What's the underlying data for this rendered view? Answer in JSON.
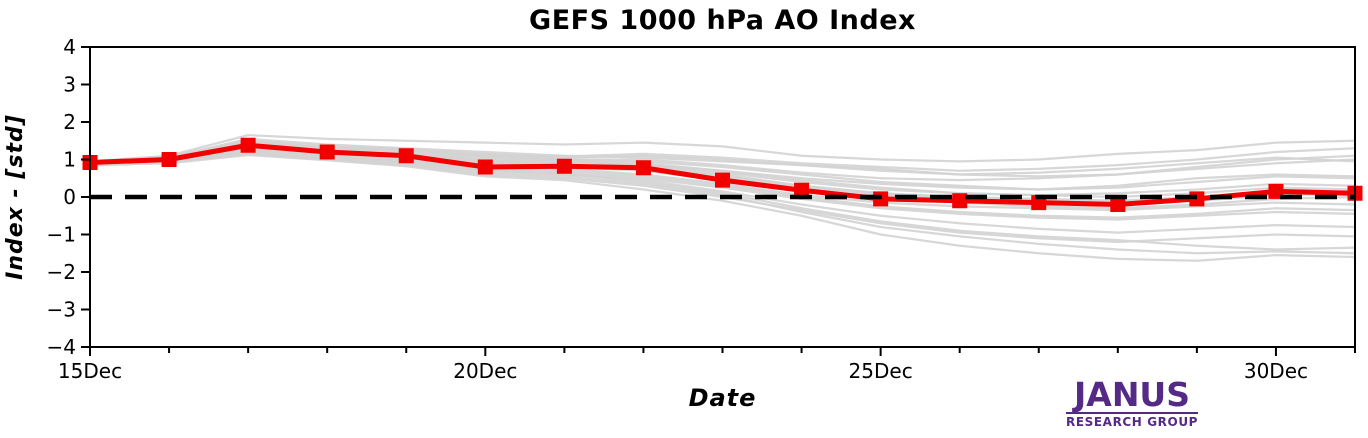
{
  "title": "GEFS 1000 hPa AO Index",
  "colors": {
    "mean_line": "#f20000",
    "ensemble_line": "#d3d3d3",
    "zero_line": "#000000",
    "axis": "#000000",
    "logo_purple": "#542a86"
  },
  "logo": {
    "name": "JANUS",
    "subtitle": "RESEARCH GROUP"
  },
  "chart_data": {
    "type": "line",
    "title": "GEFS 1000 hPa AO Index",
    "xlabel": "Date",
    "ylabel": "Index - [std]",
    "ylim": [
      -4,
      4
    ],
    "ytick_values": [
      4,
      3,
      2,
      1,
      0,
      -1,
      -2,
      -3,
      -4
    ],
    "ytick_labels": [
      "4",
      "3",
      "2",
      "1",
      "0",
      "−1",
      "−2",
      "−3",
      "−4"
    ],
    "x": [
      "15Dec",
      "16Dec",
      "17Dec",
      "18Dec",
      "19Dec",
      "20Dec",
      "21Dec",
      "22Dec",
      "23Dec",
      "24Dec",
      "25Dec",
      "26Dec",
      "27Dec",
      "28Dec",
      "29Dec",
      "30Dec",
      "31Dec"
    ],
    "x_major_tick_indices": [
      0,
      5,
      10,
      15
    ],
    "x_major_tick_labels": [
      "15Dec",
      "20Dec",
      "25Dec",
      "30Dec"
    ],
    "grid": false,
    "legend": "none",
    "zero_line": {
      "value": 0,
      "style": "dashed"
    },
    "series": [
      {
        "name": "ensemble mean",
        "marker": "square",
        "values": [
          0.92,
          1.0,
          1.38,
          1.2,
          1.1,
          0.8,
          0.82,
          0.78,
          0.45,
          0.18,
          -0.05,
          -0.1,
          -0.15,
          -0.2,
          -0.05,
          0.15,
          0.1
        ]
      }
    ],
    "ensemble_members": {
      "name": "GEFS ensemble members",
      "values": [
        [
          0.95,
          1.1,
          1.65,
          1.55,
          1.5,
          1.45,
          1.4,
          1.45,
          1.35,
          1.1,
          1.0,
          0.95,
          1.0,
          1.15,
          1.25,
          1.45,
          1.5
        ],
        [
          0.9,
          1.05,
          1.55,
          1.4,
          1.3,
          1.2,
          1.1,
          1.05,
          0.95,
          0.85,
          0.75,
          0.6,
          0.55,
          0.6,
          0.8,
          1.0,
          1.1
        ],
        [
          0.92,
          1.0,
          1.45,
          1.3,
          1.25,
          1.1,
          1.0,
          0.95,
          0.8,
          0.6,
          0.4,
          0.3,
          0.2,
          0.3,
          0.5,
          0.6,
          0.55
        ],
        [
          0.88,
          0.95,
          1.4,
          1.25,
          1.15,
          1.0,
          0.95,
          0.85,
          0.7,
          0.45,
          0.25,
          0.1,
          0.05,
          0.1,
          0.2,
          0.35,
          0.3
        ],
        [
          0.9,
          1.0,
          1.35,
          1.2,
          1.1,
          0.9,
          0.85,
          0.8,
          0.6,
          0.3,
          0.1,
          0.0,
          -0.05,
          -0.1,
          0.0,
          0.1,
          0.05
        ],
        [
          0.93,
          1.02,
          1.3,
          1.18,
          1.05,
          0.85,
          0.8,
          0.7,
          0.45,
          0.15,
          -0.05,
          -0.1,
          -0.15,
          -0.2,
          -0.1,
          0.05,
          0.1
        ],
        [
          0.87,
          0.98,
          1.28,
          1.15,
          1.0,
          0.8,
          0.75,
          0.6,
          0.35,
          0.05,
          -0.15,
          -0.25,
          -0.3,
          -0.35,
          -0.25,
          -0.15,
          -0.2
        ],
        [
          0.91,
          1.05,
          1.38,
          1.22,
          1.12,
          0.95,
          0.88,
          0.75,
          0.5,
          0.2,
          0.0,
          -0.15,
          -0.25,
          -0.3,
          -0.2,
          -0.05,
          0.0
        ],
        [
          0.89,
          0.96,
          1.25,
          1.1,
          0.95,
          0.75,
          0.65,
          0.5,
          0.25,
          -0.05,
          -0.3,
          -0.45,
          -0.55,
          -0.6,
          -0.5,
          -0.4,
          -0.45
        ],
        [
          0.94,
          1.08,
          1.5,
          1.35,
          1.28,
          1.15,
          1.05,
          1.1,
          1.0,
          0.85,
          0.7,
          0.6,
          0.65,
          0.75,
          0.9,
          1.05,
          0.95
        ],
        [
          0.9,
          1.0,
          1.32,
          1.2,
          1.08,
          0.88,
          0.82,
          0.72,
          0.5,
          0.25,
          0.05,
          -0.05,
          -0.12,
          -0.18,
          -0.08,
          0.08,
          0.15
        ],
        [
          0.86,
          0.94,
          1.2,
          1.05,
          0.92,
          0.7,
          0.6,
          0.45,
          0.15,
          -0.2,
          -0.5,
          -0.7,
          -0.85,
          -0.95,
          -0.85,
          -0.75,
          -0.8
        ],
        [
          0.92,
          1.04,
          1.42,
          1.28,
          1.18,
          1.05,
          0.98,
          0.9,
          0.7,
          0.5,
          0.35,
          0.25,
          0.2,
          0.25,
          0.4,
          0.55,
          0.5
        ],
        [
          0.88,
          0.97,
          1.26,
          1.12,
          0.98,
          0.78,
          0.7,
          0.55,
          0.3,
          0.0,
          -0.25,
          -0.4,
          -0.5,
          -0.55,
          -0.45,
          -0.3,
          -0.35
        ],
        [
          0.9,
          1.01,
          1.36,
          1.24,
          1.14,
          0.98,
          0.92,
          0.85,
          0.65,
          0.4,
          0.2,
          0.1,
          0.05,
          0.0,
          0.1,
          0.25,
          0.2
        ],
        [
          0.85,
          0.92,
          1.15,
          1.0,
          0.85,
          0.6,
          0.5,
          0.3,
          0.0,
          -0.35,
          -0.7,
          -0.95,
          -1.1,
          -1.2,
          -1.1,
          -1.0,
          -1.05
        ],
        [
          0.91,
          1.03,
          1.44,
          1.3,
          1.22,
          1.08,
          1.0,
          1.0,
          0.85,
          0.65,
          0.5,
          0.45,
          0.5,
          0.6,
          0.75,
          0.9,
          1.0
        ],
        [
          0.87,
          0.95,
          1.22,
          1.08,
          0.95,
          0.72,
          0.62,
          0.4,
          0.1,
          -0.3,
          -0.65,
          -0.9,
          -1.05,
          -1.15,
          -1.3,
          -1.4,
          -1.35
        ],
        [
          0.89,
          0.99,
          1.34,
          1.2,
          1.1,
          0.92,
          0.85,
          0.78,
          0.55,
          0.3,
          0.1,
          -0.02,
          -0.08,
          -0.12,
          -0.02,
          0.12,
          0.08
        ],
        [
          0.84,
          0.9,
          1.12,
          0.98,
          0.82,
          0.55,
          0.45,
          0.2,
          -0.1,
          -0.5,
          -1.0,
          -1.3,
          -1.5,
          -1.65,
          -1.7,
          -1.55,
          -1.6
        ],
        [
          0.93,
          1.06,
          1.48,
          1.33,
          1.25,
          1.12,
          1.08,
          1.15,
          1.05,
          0.9,
          0.8,
          0.7,
          0.75,
          0.85,
          1.0,
          1.2,
          1.3
        ],
        [
          0.86,
          0.93,
          1.18,
          1.02,
          0.88,
          0.65,
          0.55,
          0.35,
          0.05,
          -0.4,
          -0.8,
          -1.05,
          -1.25,
          -1.4,
          -1.5,
          -1.45,
          -1.5
        ]
      ]
    }
  }
}
